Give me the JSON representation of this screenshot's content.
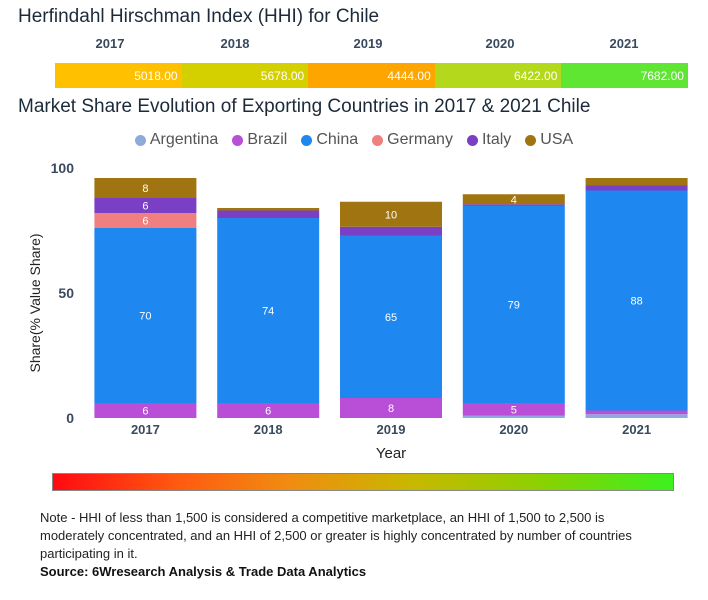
{
  "title_hhi": "Herfindahl Hirschman Index (HHI) for Chile",
  "hhi": [
    {
      "year": "2017",
      "value": "5018.00",
      "color": "#ffc000"
    },
    {
      "year": "2018",
      "value": "5678.00",
      "color": "#d4d000"
    },
    {
      "year": "2019",
      "value": "4444.00",
      "color": "#ffa500"
    },
    {
      "year": "2020",
      "value": "6422.00",
      "color": "#b4d81c"
    },
    {
      "year": "2021",
      "value": "7682.00",
      "color": "#5ee632"
    }
  ],
  "chart_title": "Market Share Evolution of Exporting Countries in 2017 & 2021 Chile",
  "legend": [
    {
      "name": "Argentina",
      "color": "#8eaadb"
    },
    {
      "name": "Brazil",
      "color": "#b84fd6"
    },
    {
      "name": "China",
      "color": "#1e88f0"
    },
    {
      "name": "Germany",
      "color": "#f08080"
    },
    {
      "name": "Italy",
      "color": "#7b3fc6"
    },
    {
      "name": "USA",
      "color": "#a07410"
    }
  ],
  "chart_data": {
    "type": "bar",
    "stacked": true,
    "categories": [
      "2017",
      "2018",
      "2019",
      "2020",
      "2021"
    ],
    "xlabel": "Year",
    "ylabel": "Share(% Value Share)",
    "ylim": [
      0,
      100
    ],
    "yticks": [
      0,
      50,
      100
    ],
    "series": [
      {
        "name": "Argentina",
        "color": "#8eaadb",
        "values": [
          0,
          0,
          0,
          1,
          1.5
        ],
        "labels": [
          "",
          "",
          "",
          "",
          ""
        ]
      },
      {
        "name": "Brazil",
        "color": "#b84fd6",
        "values": [
          6,
          6,
          8,
          5,
          1.5
        ],
        "labels": [
          "6",
          "6",
          "8",
          "5",
          ""
        ]
      },
      {
        "name": "China",
        "color": "#1e88f0",
        "values": [
          70,
          74,
          65,
          79,
          88
        ],
        "labels": [
          "70",
          "74",
          "65",
          "79",
          "88"
        ]
      },
      {
        "name": "Germany",
        "color": "#f08080",
        "values": [
          6,
          0,
          0,
          0,
          0
        ],
        "labels": [
          "6",
          "",
          "",
          "",
          ""
        ]
      },
      {
        "name": "Italy",
        "color": "#7b3fc6",
        "values": [
          6,
          3,
          3.5,
          0.5,
          2
        ],
        "labels": [
          "6",
          "",
          "",
          "",
          ""
        ]
      },
      {
        "name": "USA",
        "color": "#a07410",
        "values": [
          8,
          1,
          10,
          4,
          3
        ],
        "labels": [
          "8",
          "",
          "10",
          "4",
          ""
        ]
      }
    ]
  },
  "note": "Note - HHI of less than 1,500 is considered a competitive marketplace, an HHI of 1,500 to 2,500 is moderately concentrated, and an HHI of 2,500 or greater is highly concentrated by number of countries participating in it.",
  "source": "Source: 6Wresearch Analysis & Trade Data Analytics"
}
